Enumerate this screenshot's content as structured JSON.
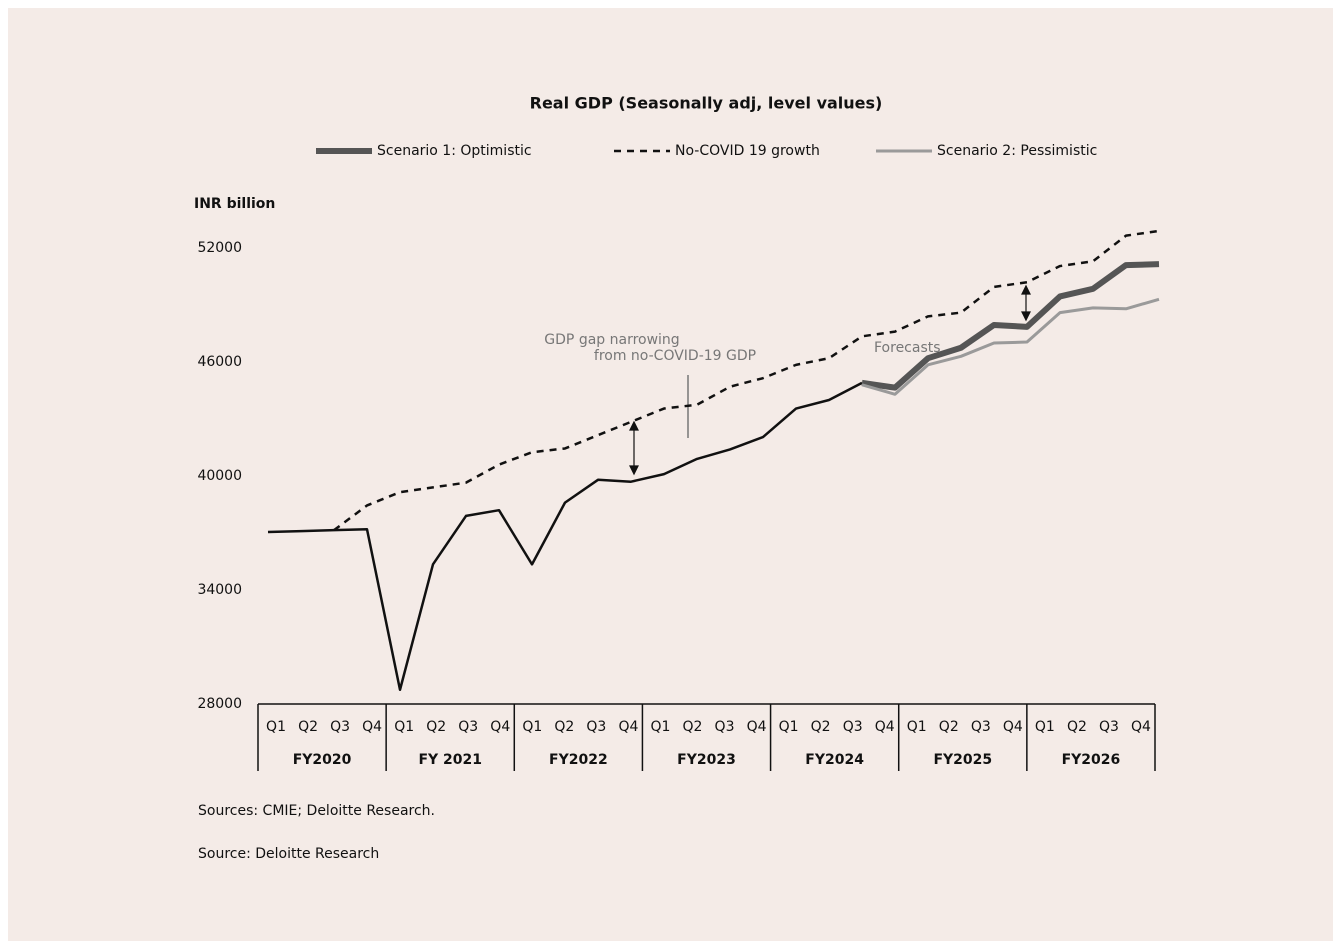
{
  "chart_data": {
    "type": "line",
    "title": "Real GDP (Seasonally adj, level values)",
    "y_label": "INR billion",
    "categories": [
      "Q1",
      "Q2",
      "Q3",
      "Q4",
      "Q1",
      "Q2",
      "Q3",
      "Q4",
      "Q1",
      "Q2",
      "Q3",
      "Q4",
      "Q1",
      "Q2",
      "Q3",
      "Q4",
      "Q1",
      "Q2",
      "Q3",
      "Q4",
      "Q1",
      "Q2",
      "Q3",
      "Q4",
      "Q1",
      "Q2",
      "Q3",
      "Q4"
    ],
    "groups": [
      "FY2020",
      "FY 2021",
      "FY2022",
      "FY2023",
      "FY2024",
      "FY2025",
      "FY2026"
    ],
    "series": [
      {
        "color": "#111111",
        "width": 2.5,
        "values": [
          37050,
          37100,
          37150,
          37200,
          28750,
          35350,
          37900,
          38200,
          35350,
          38600,
          39800,
          39700,
          40100,
          40900,
          41400,
          42050,
          43550,
          44000,
          44900,
          null,
          null,
          null,
          null,
          null,
          null,
          null,
          null,
          null
        ]
      },
      {
        "name": "Scenario 1: Optimistic",
        "color": "#555555",
        "width": 6,
        "values": [
          null,
          null,
          null,
          null,
          null,
          null,
          null,
          null,
          null,
          null,
          null,
          null,
          null,
          null,
          null,
          null,
          null,
          null,
          44900,
          44650,
          46200,
          46750,
          47950,
          47850,
          49450,
          49850,
          51100,
          51150
        ]
      },
      {
        "name": "No-COVID 19 growth",
        "color": "#111111",
        "width": 2.5,
        "dashed": true,
        "values": [
          null,
          null,
          37150,
          38450,
          39150,
          39400,
          39650,
          40600,
          41250,
          41450,
          42150,
          42850,
          43550,
          43750,
          44700,
          45150,
          45850,
          46200,
          47350,
          47600,
          48400,
          48600,
          49950,
          50200,
          51050,
          51300,
          52650,
          52900
        ]
      },
      {
        "name": "Scenario 2: Pessimistic",
        "color": "#9a9a9a",
        "width": 3,
        "values": [
          null,
          null,
          null,
          null,
          null,
          null,
          null,
          null,
          null,
          null,
          null,
          null,
          null,
          null,
          null,
          null,
          null,
          null,
          44800,
          44300,
          45850,
          46300,
          47000,
          47050,
          48600,
          48850,
          48800,
          49300
        ]
      }
    ],
    "ylim": [
      28000,
      52000
    ],
    "yticks": [
      28000,
      34000,
      40000,
      46000,
      52000
    ],
    "grid": false,
    "annotations": [
      "GDP gap narrowing",
      "from no-COVID-19 GDP",
      "Forecasts"
    ],
    "sources": [
      "Sources: CMIE; Deloitte Research.",
      "Source: Deloitte Research"
    ]
  }
}
